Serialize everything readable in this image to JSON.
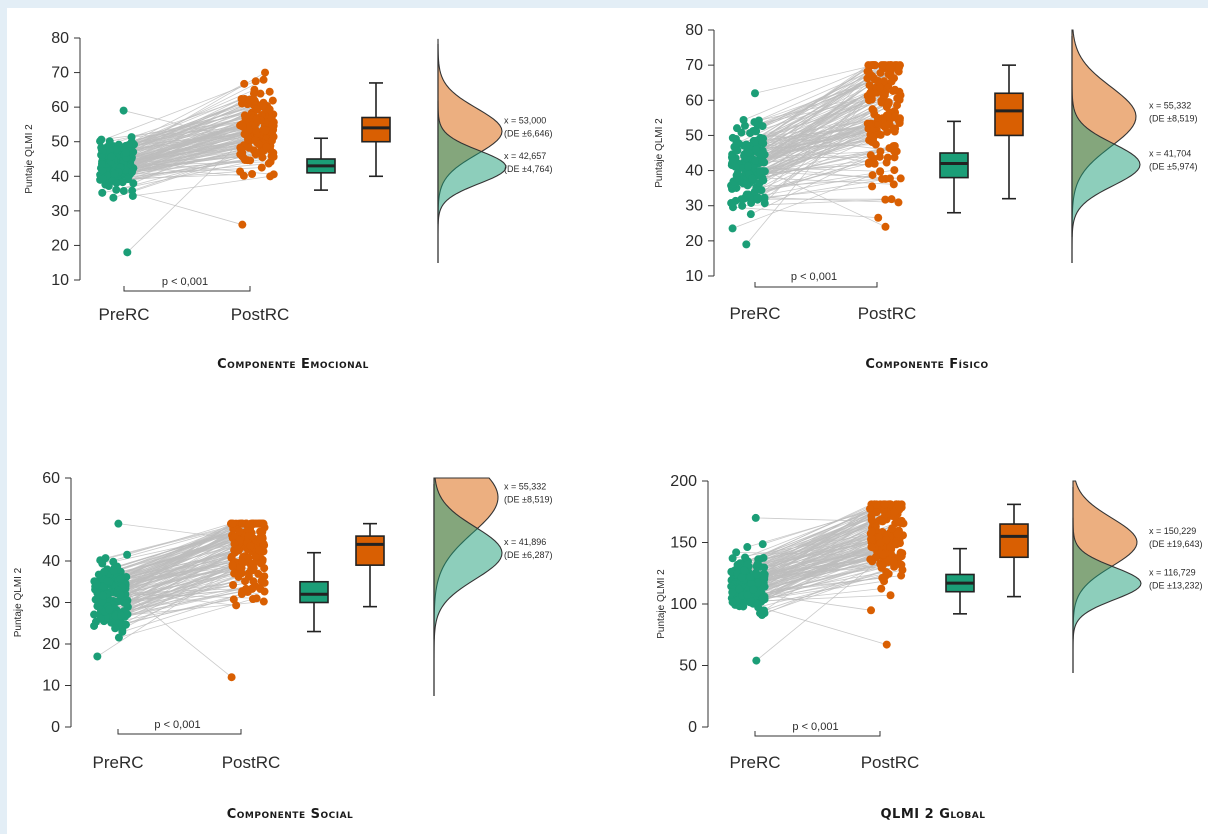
{
  "colors": {
    "pre": "#1b9e77",
    "post": "#d95f02",
    "link": "#bdbdbd",
    "axis": "#333333"
  },
  "chart_data": [
    {
      "type": "raincloud",
      "title": "Componente Emocional",
      "ylabel": "Puntaje QLMI 2",
      "ylim": [
        10,
        80
      ],
      "yticks": [
        10,
        20,
        30,
        40,
        50,
        60,
        70,
        80
      ],
      "categories": [
        "PreRC",
        "PostRC"
      ],
      "p_value_label": "p < 0,001",
      "series": [
        {
          "name": "PreRC",
          "mean": 42.657,
          "sd": 4.764,
          "box": {
            "min": 36,
            "q1": 41,
            "median": 43,
            "q3": 45,
            "max": 51
          },
          "range": [
            18,
            59
          ],
          "mean_label": "x = 42,657",
          "sd_label": "(DE ±4,764)"
        },
        {
          "name": "PostRC",
          "mean": 53.0,
          "sd": 6.646,
          "box": {
            "min": 40,
            "q1": 50,
            "median": 54,
            "q3": 57,
            "max": 67
          },
          "range": [
            26,
            70
          ],
          "mean_label": "x = 53,000",
          "sd_label": "(DE ±6,646)"
        }
      ]
    },
    {
      "type": "raincloud",
      "title": "Componente Físico",
      "ylabel": "Puntaje QLMI 2",
      "ylim": [
        10,
        80
      ],
      "yticks": [
        10,
        20,
        30,
        40,
        50,
        60,
        70,
        80
      ],
      "categories": [
        "PreRC",
        "PostRC"
      ],
      "p_value_label": "p < 0,001",
      "series": [
        {
          "name": "PreRC",
          "mean": 41.704,
          "sd": 5.974,
          "box": {
            "min": 28,
            "q1": 38,
            "median": 42,
            "q3": 45,
            "max": 54
          },
          "range": [
            19,
            62
          ],
          "mean_label": "x = 41,704",
          "sd_label": "(DE ±5,974)"
        },
        {
          "name": "PostRC",
          "mean": 55.332,
          "sd": 8.519,
          "box": {
            "min": 32,
            "q1": 50,
            "median": 57,
            "q3": 62,
            "max": 70
          },
          "range": [
            24,
            70
          ],
          "mean_label": "x = 55,332",
          "sd_label": "(DE ±8,519)"
        }
      ]
    },
    {
      "type": "raincloud",
      "title": "Componente Social",
      "ylabel": "Puntaje QLMI 2",
      "ylim": [
        0,
        60
      ],
      "yticks": [
        0,
        10,
        20,
        30,
        40,
        50,
        60
      ],
      "categories": [
        "PreRC",
        "PostRC"
      ],
      "p_value_label": "p < 0,001",
      "series": [
        {
          "name": "PreRC",
          "mean": 41.896,
          "sd": 6.287,
          "box": {
            "min": 23,
            "q1": 30,
            "median": 32,
            "q3": 35,
            "max": 42
          },
          "range": [
            17,
            49
          ],
          "mean_label": "x = 41,896",
          "sd_label": "(DE ±6,287)"
        },
        {
          "name": "PostRC",
          "mean": 55.332,
          "sd": 8.519,
          "box": {
            "min": 29,
            "q1": 39,
            "median": 44,
            "q3": 46,
            "max": 49
          },
          "range": [
            12,
            49
          ],
          "mean_label": "x = 55,332",
          "sd_label": "(DE ±8,519)"
        }
      ]
    },
    {
      "type": "raincloud",
      "title": "QLMI 2 Global",
      "ylabel": "Puntaje QLMI 2",
      "ylim": [
        0,
        200
      ],
      "yticks": [
        0,
        50,
        100,
        150,
        200
      ],
      "categories": [
        "PreRC",
        "PostRC"
      ],
      "p_value_label": "p < 0,001",
      "series": [
        {
          "name": "PreRC",
          "mean": 116.729,
          "sd": 13.232,
          "box": {
            "min": 92,
            "q1": 110,
            "median": 117,
            "q3": 124,
            "max": 145
          },
          "range": [
            54,
            170
          ],
          "mean_label": "x = 116,729",
          "sd_label": "(DE ±13,232)"
        },
        {
          "name": "PostRC",
          "mean": 150.229,
          "sd": 19.643,
          "box": {
            "min": 106,
            "q1": 138,
            "median": 155,
            "q3": 165,
            "max": 181
          },
          "range": [
            67,
            181
          ],
          "mean_label": "x = 150,229",
          "sd_label": "(DE ±19,643)"
        }
      ]
    }
  ]
}
